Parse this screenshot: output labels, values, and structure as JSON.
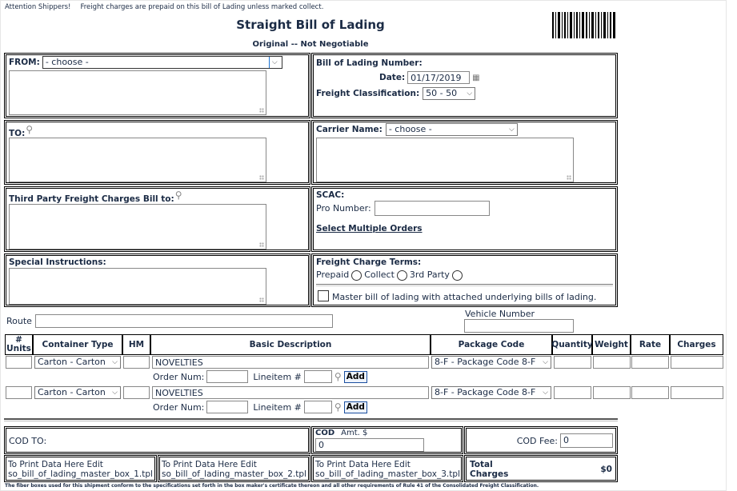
{
  "header": {
    "attention": "Attention Shippers!",
    "notice": "Freight charges are prepaid on this bill of Lading unless marked collect.",
    "title": "Straight Bill of Lading",
    "subtitle": "Original -- Not Negotiable",
    "barcode_icon": "barcode"
  },
  "from": {
    "label": "FROM:",
    "select": "- choose -"
  },
  "bol": {
    "number_label": "Bill of Lading Number:",
    "date_label": "Date:",
    "date_value": "01/17/2019",
    "class_label": "Freight Classification:",
    "class_value": "50 - 50"
  },
  "to": {
    "label": "TO:"
  },
  "carrier": {
    "label": "Carrier Name:",
    "select": "- choose -"
  },
  "third_party": {
    "label": "Third Party Freight Charges Bill to:"
  },
  "scac": {
    "label": "SCAC:",
    "pro_label": "Pro Number:",
    "pro_value": "",
    "multi_link": "Select Multiple Orders"
  },
  "special": {
    "label": "Special Instructions:"
  },
  "terms": {
    "label": "Freight Charge Terms:",
    "options": [
      "Prepaid",
      "Collect",
      "3rd Party"
    ],
    "master_label": "Master bill of lading with attached underlying bills of lading.",
    "master_checked": false
  },
  "route": {
    "label": "Route",
    "value": ""
  },
  "vehicle": {
    "label": "Vehicle Number",
    "value": ""
  },
  "table": {
    "headers": [
      "# Units",
      "Container Type",
      "HM",
      "Basic Description",
      "Package Code",
      "Quantity",
      "Weight",
      "Rate",
      "Charges"
    ],
    "rows": [
      {
        "units": "",
        "container": "Carton - Carton",
        "hm": "",
        "description": "NOVELTIES",
        "package": "8-F - Package Code 8-F",
        "quantity": "",
        "weight": "",
        "rate": "",
        "charges": ""
      },
      {
        "units": "",
        "container": "Carton - Carton",
        "hm": "",
        "description": "NOVELTIES",
        "package": "8-F - Package Code 8-F",
        "quantity": "",
        "weight": "",
        "rate": "",
        "charges": ""
      }
    ],
    "order_num_label": "Order Num:",
    "lineitem_label": "Lineitem #",
    "add_label": "Add"
  },
  "cod": {
    "to_label": "COD TO:",
    "cod_label": "COD",
    "amt_label": "Amt. $",
    "amt_value": "0",
    "fee_label": "COD Fee:",
    "fee_value": "0"
  },
  "boxes": [
    {
      "line1": "To Print Data Here Edit",
      "line2": "so_bill_of_lading_master_box_1.tpl"
    },
    {
      "line1": "To Print Data Here Edit",
      "line2": "so_bill_of_lading_master_box_2.tpl"
    },
    {
      "line1": "To Print Data Here Edit",
      "line2": "so_bill_of_lading_master_box_3.tpl"
    }
  ],
  "total": {
    "label1": "Total",
    "label2": "Charges",
    "value": "$0"
  },
  "footer": "The fiber boxes used for this shipment conform to the specifications set forth in the box maker's certificate thereon and all other requirements of Rule 41 of the Consolidated Freight Classification."
}
